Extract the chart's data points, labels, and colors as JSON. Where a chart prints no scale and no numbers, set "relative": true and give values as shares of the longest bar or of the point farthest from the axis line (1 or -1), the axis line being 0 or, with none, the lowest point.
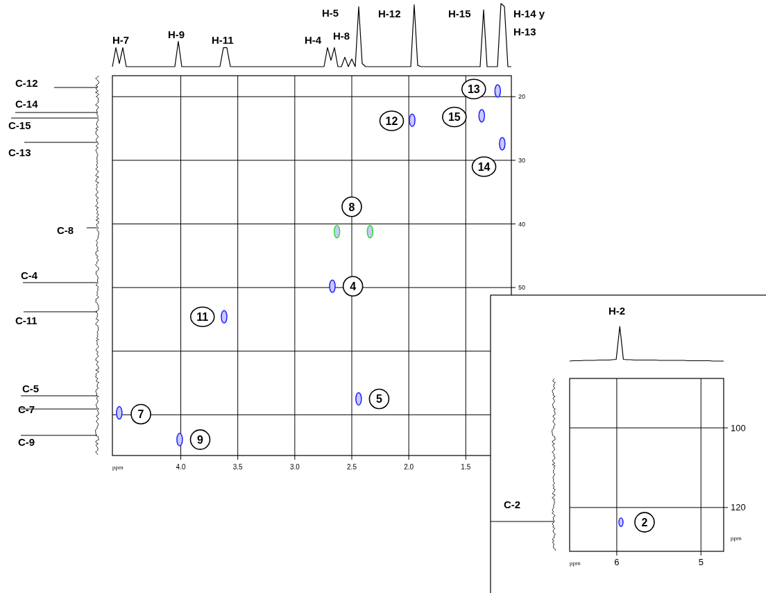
{
  "chart_data": [
    {
      "type": "scatter",
      "xlabel": "ppm",
      "xlim": [
        4.6,
        1.1
      ],
      "xticks": [
        {
          "value": 4,
          "label": "4.0"
        },
        {
          "value": 3.5,
          "label": "3.5"
        },
        {
          "value": 3,
          "label": "3.0"
        },
        {
          "value": 2.5,
          "label": "2.5"
        },
        {
          "value": 2,
          "label": "2.0"
        },
        {
          "value": 1.5,
          "label": "1.5"
        }
      ],
      "ylim": [
        76.4,
        16.7
      ],
      "yticks": [
        20,
        30,
        40,
        50,
        {
          "value": 60,
          "label": null
        },
        {
          "value": 70,
          "label": null
        }
      ],
      "grid": true,
      "marker": "circle",
      "series": [
        {
          "color": "#1f1fff",
          "x": [
            1.22,
            1.97,
            1.36,
            1.18,
            2.67,
            3.62,
            2.44,
            4.54,
            4.01
          ],
          "values": [
            19.1,
            23.7,
            23.0,
            27.4,
            49.8,
            54.6,
            67.5,
            69.7,
            73.9
          ]
        },
        {
          "color": "#33dd33",
          "x": [
            2.63,
            2.34
          ],
          "values": [
            41.2,
            41.2
          ]
        }
      ],
      "annotations": [
        {
          "text": "13",
          "x": 1.43,
          "y": 18.8
        },
        {
          "text": "12",
          "x": 2.15,
          "y": 23.8
        },
        {
          "text": "15",
          "x": 1.6,
          "y": 23.2
        },
        {
          "text": "14",
          "x": 1.34,
          "y": 31
        },
        {
          "text": "8",
          "x": 2.5,
          "y": 37.3
        },
        {
          "text": "4",
          "x": 2.49,
          "y": 49.8
        },
        {
          "text": "11",
          "x": 3.81,
          "y": 54.6
        },
        {
          "text": "5",
          "x": 2.26,
          "y": 67.5
        },
        {
          "text": "7",
          "x": 4.35,
          "y": 69.9
        },
        {
          "text": "9",
          "x": 3.83,
          "y": 73.9
        },
        "C-12",
        "C-14",
        "C-15",
        "C-13",
        "C-8",
        "C-4",
        "C-11",
        "C-5",
        "C-7",
        "C-9"
      ]
    },
    {
      "type": "line",
      "relative": true,
      "categories": [
        null,
        null,
        null,
        null,
        null,
        null,
        null,
        null,
        null,
        null,
        null,
        null,
        null,
        null,
        null,
        null,
        null,
        null,
        null,
        null,
        null,
        null,
        null,
        null,
        null,
        null,
        null,
        null,
        null,
        null,
        null,
        null,
        null,
        null,
        null,
        null,
        null,
        null,
        null,
        null,
        null,
        null,
        null,
        null,
        null,
        null,
        null,
        null,
        null,
        null,
        null,
        null,
        null,
        null,
        null,
        null,
        null,
        null,
        null,
        null,
        null,
        null,
        null,
        null,
        null,
        null,
        null,
        null,
        null,
        null,
        null,
        null,
        null,
        null,
        null,
        null,
        null,
        null,
        null,
        null,
        null,
        null,
        null,
        null,
        null,
        null,
        null,
        null,
        null,
        null,
        null,
        null,
        null,
        null,
        null,
        null,
        null,
        null,
        null,
        null,
        null,
        null,
        null,
        null,
        null,
        null,
        null,
        null,
        null,
        null,
        null,
        null,
        null,
        null,
        null,
        null
      ],
      "series": [
        {
          "color": "#000000",
          "values": [
            0,
            0.3,
            0.05,
            0.3,
            0,
            0,
            0,
            0,
            0,
            0,
            0,
            0,
            0,
            0,
            0,
            0,
            0,
            0,
            0,
            0.4,
            0,
            0,
            0,
            0,
            0,
            0,
            0,
            0,
            0,
            0,
            0,
            0,
            0.3,
            0.3,
            0,
            0,
            0,
            0,
            0,
            0,
            0,
            0,
            0,
            0,
            0,
            0,
            0,
            0,
            0,
            0,
            0,
            0,
            0,
            0,
            0,
            0,
            0,
            0,
            0,
            0,
            0,
            0,
            0.3,
            0.1,
            0.3,
            0,
            0,
            0.15,
            0,
            0.12,
            0,
            0.95,
            0.05,
            0,
            0,
            0,
            0,
            0,
            0,
            0,
            0,
            0,
            0,
            0,
            0,
            0,
            0,
            0.98,
            0.02,
            0,
            0,
            0,
            0,
            0,
            0,
            0,
            0,
            0,
            0,
            0,
            0,
            0,
            0,
            0,
            0,
            0,
            0,
            0.9,
            0,
            0,
            0,
            0,
            1.0,
            0.95,
            0,
            0
          ]
        }
      ],
      "annotations": [
        "H-7",
        "H-9",
        "H-11",
        "H-4",
        "H-5",
        "H-8",
        "H-12",
        "H-15",
        "H-14 y",
        "H-13"
      ]
    },
    {
      "type": "scatter",
      "xlabel": "ppm",
      "ylabel": "ppm",
      "xlim": [
        6.56,
        4.73
      ],
      "xticks": [
        6,
        5
      ],
      "ylim": [
        131,
        87.6
      ],
      "yticks": [
        100,
        120
      ],
      "grid": true,
      "marker": "circle",
      "series": [
        {
          "color": "#1f1fff",
          "x": [
            5.95
          ],
          "values": [
            123.7
          ]
        }
      ],
      "annotations": [
        {
          "text": "2",
          "x": 5.67,
          "y": 123.7
        },
        "C-2"
      ]
    },
    {
      "type": "line",
      "relative": true,
      "categories": [
        null,
        null,
        null,
        null,
        null,
        null,
        null,
        null,
        null,
        null,
        null,
        null,
        null,
        null,
        null,
        null,
        null,
        null,
        null,
        null,
        null,
        null,
        null,
        null,
        null,
        null,
        null,
        null,
        null,
        null,
        null,
        null,
        null,
        null,
        null,
        null,
        null,
        null,
        null,
        null,
        null,
        null,
        null,
        null
      ],
      "series": [
        {
          "color": "#000000",
          "values": [
            0,
            0.01,
            0.01,
            0.01,
            0.02,
            0.02,
            0.02,
            0.02,
            0.03,
            0.03,
            0.03,
            0.03,
            0.04,
            0.05,
            1.0,
            0.05,
            0.04,
            0.04,
            0.03,
            0.03,
            0.03,
            0.03,
            0.03,
            0.03,
            0.03,
            0.02,
            0.02,
            0.02,
            0.02,
            0.02,
            0.02,
            0.02,
            0.02,
            0.01,
            0.01,
            0.01,
            0.01,
            0.01,
            0.01,
            0.01,
            0,
            0,
            0,
            0
          ]
        }
      ],
      "annotations": [
        "H-2"
      ]
    }
  ]
}
